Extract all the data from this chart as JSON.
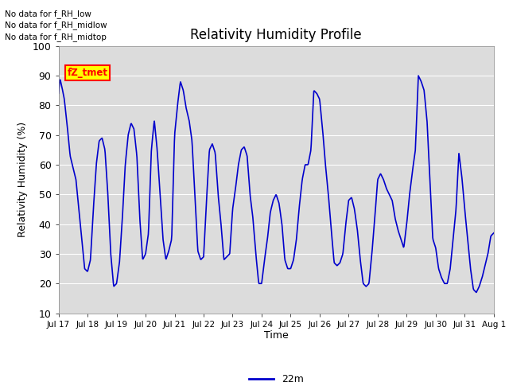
{
  "title": "Relativity Humidity Profile",
  "ylabel": "Relativity Humidity (%)",
  "xlabel": "Time",
  "ylim": [
    10,
    100
  ],
  "yticks": [
    10,
    20,
    30,
    40,
    50,
    60,
    70,
    80,
    90,
    100
  ],
  "line_color": "#0000CC",
  "bg_color": "#DCDCDC",
  "legend_label": "22m",
  "annotations": [
    "No data for f_RH_low",
    "No data for f̅R̅H̅_̅midlow",
    "No data for f̅R̅H̅_̅midtop"
  ],
  "ann_raw": [
    "No data for f_RH_low",
    "No data for f_RH_midlow",
    "No data for f_RH_midtop"
  ],
  "legend_box_text": "fZ_tmet",
  "xtick_labels": [
    "Jul 17",
    "Jul 18",
    "Jul 19",
    "Jul 20",
    "Jul 21",
    "Jul 22",
    "Jul 23",
    "Jul 24",
    "Jul 25",
    "Jul 26",
    "Jul 27",
    "Jul 28",
    "Jul 29",
    "Jul 30",
    "Jul 31",
    "Aug 1"
  ],
  "xp": [
    0.0,
    0.05,
    0.12,
    0.2,
    0.3,
    0.4,
    0.5,
    0.6,
    0.7,
    0.8,
    0.9,
    1.0,
    1.1,
    1.2,
    1.3,
    1.4,
    1.5,
    1.6,
    1.7,
    1.8,
    1.9,
    2.0,
    2.1,
    2.2,
    2.3,
    2.4,
    2.5,
    2.6,
    2.7,
    2.8,
    2.9,
    3.0,
    3.1,
    3.2,
    3.3,
    3.4,
    3.5,
    3.6,
    3.7,
    3.8,
    3.9,
    4.0,
    4.1,
    4.2,
    4.3,
    4.4,
    4.5,
    4.6,
    4.7,
    4.8,
    4.9,
    5.0,
    5.1,
    5.2,
    5.3,
    5.4,
    5.5,
    5.6,
    5.7,
    5.8,
    5.9,
    6.0,
    6.1,
    6.2,
    6.3,
    6.4,
    6.5,
    6.6,
    6.7,
    6.8,
    6.9,
    7.0,
    7.1,
    7.2,
    7.3,
    7.4,
    7.5,
    7.6,
    7.7,
    7.8,
    7.9,
    8.0,
    8.1,
    8.2,
    8.3,
    8.4,
    8.5,
    8.6,
    8.7,
    8.8,
    8.9,
    9.0,
    9.1,
    9.2,
    9.3,
    9.4,
    9.5,
    9.6,
    9.7,
    9.8,
    9.9,
    10.0,
    10.1,
    10.2,
    10.3,
    10.4,
    10.5,
    10.6,
    10.7,
    10.8,
    10.9,
    11.0,
    11.1,
    11.2,
    11.3,
    11.4,
    11.5,
    11.6,
    11.7,
    11.8,
    11.9,
    12.0,
    12.1,
    12.2,
    12.3,
    12.4,
    12.5,
    12.6,
    12.7,
    12.8,
    12.9,
    13.0,
    13.1,
    13.2,
    13.3,
    13.4,
    13.5,
    13.6,
    13.7,
    13.8,
    13.9,
    14.0,
    14.1,
    14.2,
    14.3,
    14.4,
    14.5,
    14.6,
    14.7,
    14.8,
    14.9,
    15.0
  ],
  "yp": [
    84,
    89,
    86,
    82,
    73,
    63,
    59,
    55,
    45,
    35,
    25,
    24,
    28,
    45,
    60,
    68,
    69,
    65,
    50,
    30,
    19,
    20,
    27,
    42,
    60,
    70,
    74,
    72,
    63,
    42,
    28,
    30,
    37,
    65,
    75,
    65,
    50,
    35,
    28,
    31,
    35,
    70,
    80,
    88,
    85,
    79,
    75,
    68,
    50,
    31,
    28,
    29,
    48,
    65,
    67,
    64,
    50,
    40,
    28,
    29,
    30,
    45,
    52,
    60,
    65,
    66,
    63,
    50,
    42,
    30,
    20,
    20,
    28,
    35,
    44,
    48,
    50,
    47,
    40,
    28,
    25,
    25,
    28,
    35,
    46,
    55,
    60,
    60,
    65,
    85,
    84,
    82,
    72,
    60,
    50,
    38,
    27,
    26,
    27,
    30,
    40,
    48,
    49,
    45,
    38,
    28,
    20,
    19,
    20,
    30,
    42,
    55,
    57,
    55,
    52,
    50,
    48,
    42,
    38,
    35,
    32,
    40,
    50,
    58,
    65,
    90,
    88,
    85,
    75,
    55,
    35,
    32,
    25,
    22,
    20,
    20,
    25,
    35,
    45,
    64,
    56,
    45,
    35,
    25,
    18,
    17,
    19,
    22,
    26,
    30,
    36,
    37
  ],
  "figsize": [
    6.4,
    4.8
  ],
  "dpi": 100
}
